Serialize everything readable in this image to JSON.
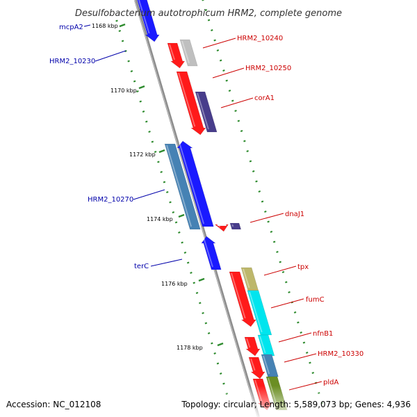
{
  "title": "Desulfobacterium autotrophicum HRM2, complete genome",
  "accession": "Accession: NC_012108",
  "summary": "Topology: circular; Length: 5,589,073 bp; Genes: 4,936",
  "colors": {
    "backbone": "#8c8c8c",
    "tick_dots": "#2e8b2e",
    "minus_label": "#0000aa",
    "plus_label": "#cc0000"
  },
  "kbp_ticks": [
    {
      "label": "1168 kbp",
      "kbp": 1168
    },
    {
      "label": "1170 kbp",
      "kbp": 1170
    },
    {
      "label": "1172 kbp",
      "kbp": 1172
    },
    {
      "label": "1174 kbp",
      "kbp": 1174
    },
    {
      "label": "1176 kbp",
      "kbp": 1176
    },
    {
      "label": "1178 kbp",
      "kbp": 1178
    }
  ],
  "genes_left": [
    {
      "label": "mcpA2",
      "color": "#1a1aff"
    },
    {
      "label": "HRM2_10230",
      "color": "#1a1aff"
    },
    {
      "label": "HRM2_10270",
      "color": "#4682b4"
    },
    {
      "label": "terC",
      "color": "#1a1aff"
    }
  ],
  "genes_right": [
    {
      "label": "HRM2_10240",
      "color": "#ff1a1a"
    },
    {
      "label": "HRM2_10250",
      "color": "#ff1a1a"
    },
    {
      "label": "corA1",
      "color": "#483d8b"
    },
    {
      "label": "dnaJ1",
      "color": "#ff1a1a"
    },
    {
      "label": "tpx",
      "color": "#bdb76b"
    },
    {
      "label": "fumC",
      "color": "#00e5ee"
    },
    {
      "label": "nfnB1",
      "color": "#00e5ee"
    },
    {
      "label": "HRM2_10330",
      "color": "#4682b4"
    },
    {
      "label": "pldA",
      "color": "#6b8e23"
    }
  ]
}
